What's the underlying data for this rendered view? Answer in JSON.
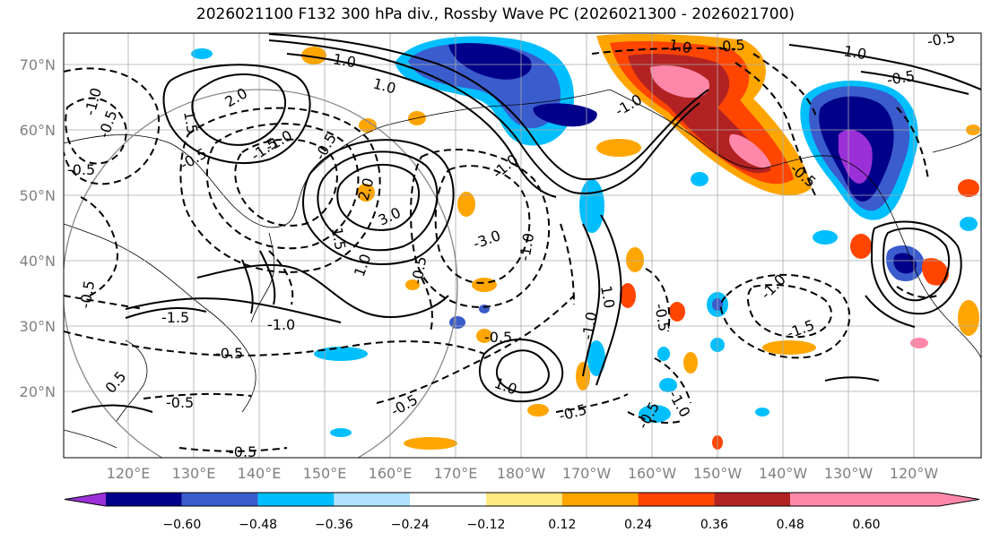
{
  "title": "2026021100 F132 300 hPa div., Rossby Wave PC (2026021300 - 2026021700)",
  "map": {
    "lat_labels": [
      "70°N",
      "60°N",
      "50°N",
      "40°N",
      "30°N",
      "20°N"
    ],
    "lon_labels": [
      "120°E",
      "130°E",
      "140°E",
      "150°E",
      "160°E",
      "170°E",
      "180°W",
      "170°W",
      "160°W",
      "150°W",
      "140°W",
      "130°W",
      "120°W"
    ],
    "contour_labels": [
      "-1.0",
      "-0.5",
      "2.0",
      "1.0",
      "-1.5",
      "-1.0",
      "-0.5",
      "-0.5",
      "1.5",
      "2.0",
      "-1.0",
      "-0.5",
      "-0.5",
      "3.0",
      "1.5",
      "-1.0",
      "-3.0",
      "-1.0",
      "1.0",
      "-1.5",
      "-1.0",
      "-0.5",
      "-0.5",
      "-0.5",
      "-0.5",
      "-0.5",
      "1.0",
      "-0.5",
      "-1.0",
      "1.0",
      "-0.5",
      "-0.5",
      "-0.5",
      "1.0",
      "-1.0",
      "-0.5",
      "-0.5",
      "-1.0",
      "-0.5",
      "-1.0",
      "-0.5",
      "1.0",
      "-1.5",
      "0.5"
    ]
  },
  "colorbar": {
    "colors": [
      "#9b30d8",
      "#00008b",
      "#3a5ccc",
      "#00bfff",
      "#b0e2ff",
      "#ffffff",
      "#ffea80",
      "#ffa500",
      "#ff4500",
      "#b22222",
      "#ff88aa"
    ],
    "tick_labels": [
      "−0.60",
      "−0.48",
      "−0.36",
      "−0.24",
      "−0.12",
      "0.12",
      "0.24",
      "0.36",
      "0.48",
      "0.60"
    ]
  }
}
